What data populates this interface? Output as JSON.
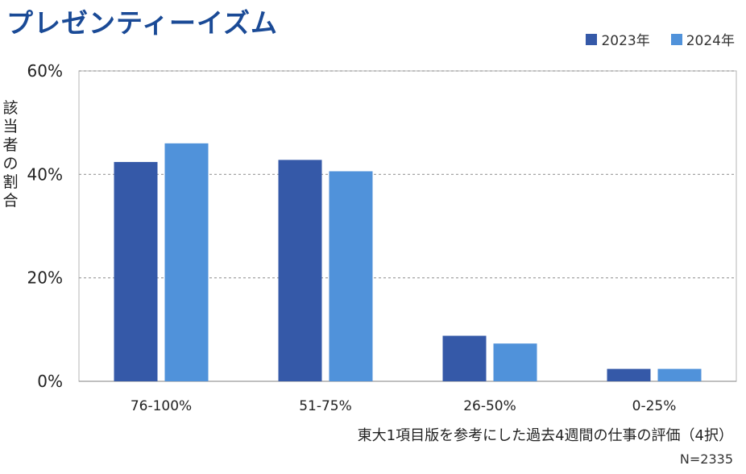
{
  "chart_data": {
    "type": "bar",
    "title": "プレゼンティーイズム",
    "categories": [
      "76-100%",
      "51-75%",
      "26-50%",
      "0-25%"
    ],
    "series": [
      {
        "name": "2023年",
        "color": "#3559a8",
        "values": [
          42.4,
          42.8,
          8.8,
          2.4
        ]
      },
      {
        "name": "2024年",
        "color": "#5092da",
        "values": [
          46.0,
          40.6,
          7.3,
          2.4
        ]
      }
    ],
    "ylabel": "該当者の割合",
    "xlabel": "東大1項目版を参考にした過去4週間の仕事の評価（4択）",
    "ylim": [
      0,
      60
    ],
    "yticks": [
      0,
      20,
      40,
      60
    ],
    "ytick_labels": [
      "0%",
      "20%",
      "40%",
      "60%"
    ],
    "grid": true,
    "legend_position": "top-right",
    "note": "N=2335"
  }
}
